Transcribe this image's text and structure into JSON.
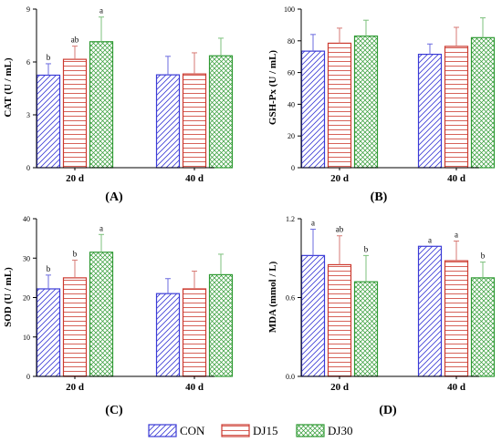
{
  "legend": {
    "entries": [
      {
        "name": "CON",
        "color": "#3b3bd6",
        "pattern": "diag"
      },
      {
        "name": "DJ15",
        "color": "#cc3a2f",
        "pattern": "horiz"
      },
      {
        "name": "DJ30",
        "color": "#2f9a33",
        "pattern": "cross"
      }
    ]
  },
  "colors": {
    "CON": "#3b3bd6",
    "DJ15": "#cc3a2f",
    "DJ30": "#2f9a33",
    "letters": "#444444",
    "error_con": "#6b6bdf",
    "error_dj15": "#d77a74",
    "error_dj30": "#7cc07c"
  },
  "chart_data": [
    {
      "type": "bar",
      "panel_label": "(A)",
      "ylabel": "CAT (U / mL)",
      "categories": [
        "20 d",
        "40 d"
      ],
      "ylim": [
        0,
        9
      ],
      "yticks": [
        0,
        3,
        6,
        9
      ],
      "series": [
        {
          "name": "CON",
          "values": [
            5.25,
            5.27
          ],
          "errors": [
            0.65,
            1.05
          ],
          "letters": [
            "b",
            ""
          ]
        },
        {
          "name": "DJ15",
          "values": [
            6.15,
            5.32
          ],
          "errors": [
            0.75,
            1.2
          ],
          "letters": [
            "ab",
            ""
          ]
        },
        {
          "name": "DJ30",
          "values": [
            7.15,
            6.35
          ],
          "errors": [
            1.4,
            1.0
          ],
          "letters": [
            "a",
            ""
          ]
        }
      ]
    },
    {
      "type": "bar",
      "panel_label": "(B)",
      "ylabel": "GSH-Px (U / mL)",
      "categories": [
        "20 d",
        "40 d"
      ],
      "ylim": [
        0,
        100
      ],
      "yticks": [
        0,
        20,
        40,
        60,
        80,
        100
      ],
      "series": [
        {
          "name": "CON",
          "values": [
            73.5,
            71.5
          ],
          "errors": [
            10.5,
            6.5
          ],
          "letters": [
            "",
            ""
          ]
        },
        {
          "name": "DJ15",
          "values": [
            78.5,
            76.5
          ],
          "errors": [
            9.5,
            12.0
          ],
          "letters": [
            "",
            ""
          ]
        },
        {
          "name": "DJ30",
          "values": [
            83.0,
            82.0
          ],
          "errors": [
            10.0,
            12.5
          ],
          "letters": [
            "",
            ""
          ]
        }
      ]
    },
    {
      "type": "bar",
      "panel_label": "(C)",
      "ylabel": "SOD (U / mL)",
      "categories": [
        "20 d",
        "40 d"
      ],
      "ylim": [
        0,
        40
      ],
      "yticks": [
        0,
        10,
        20,
        30,
        40
      ],
      "series": [
        {
          "name": "CON",
          "values": [
            22.2,
            21.0
          ],
          "errors": [
            3.5,
            3.8
          ],
          "letters": [
            "b",
            ""
          ]
        },
        {
          "name": "DJ15",
          "values": [
            25.0,
            22.2
          ],
          "errors": [
            4.5,
            4.5
          ],
          "letters": [
            "b",
            ""
          ]
        },
        {
          "name": "DJ30",
          "values": [
            31.5,
            25.8
          ],
          "errors": [
            4.5,
            5.2
          ],
          "letters": [
            "a",
            ""
          ]
        }
      ]
    },
    {
      "type": "bar",
      "panel_label": "(D)",
      "ylabel": "MDA (mmol / L)",
      "categories": [
        "20 d",
        "40 d"
      ],
      "ylim": [
        0,
        1.2
      ],
      "yticks": [
        0.0,
        0.6,
        1.2
      ],
      "yticklabels": [
        "0.0",
        "0.6",
        "1.2"
      ],
      "series": [
        {
          "name": "CON",
          "values": [
            0.92,
            0.99
          ],
          "errors": [
            0.2,
            0.0
          ],
          "letters": [
            "a",
            "a"
          ]
        },
        {
          "name": "DJ15",
          "values": [
            0.85,
            0.88
          ],
          "errors": [
            0.22,
            0.15
          ],
          "letters": [
            "ab",
            "a"
          ]
        },
        {
          "name": "DJ30",
          "values": [
            0.72,
            0.75
          ],
          "errors": [
            0.2,
            0.12
          ],
          "letters": [
            "b",
            "b"
          ]
        }
      ]
    }
  ]
}
